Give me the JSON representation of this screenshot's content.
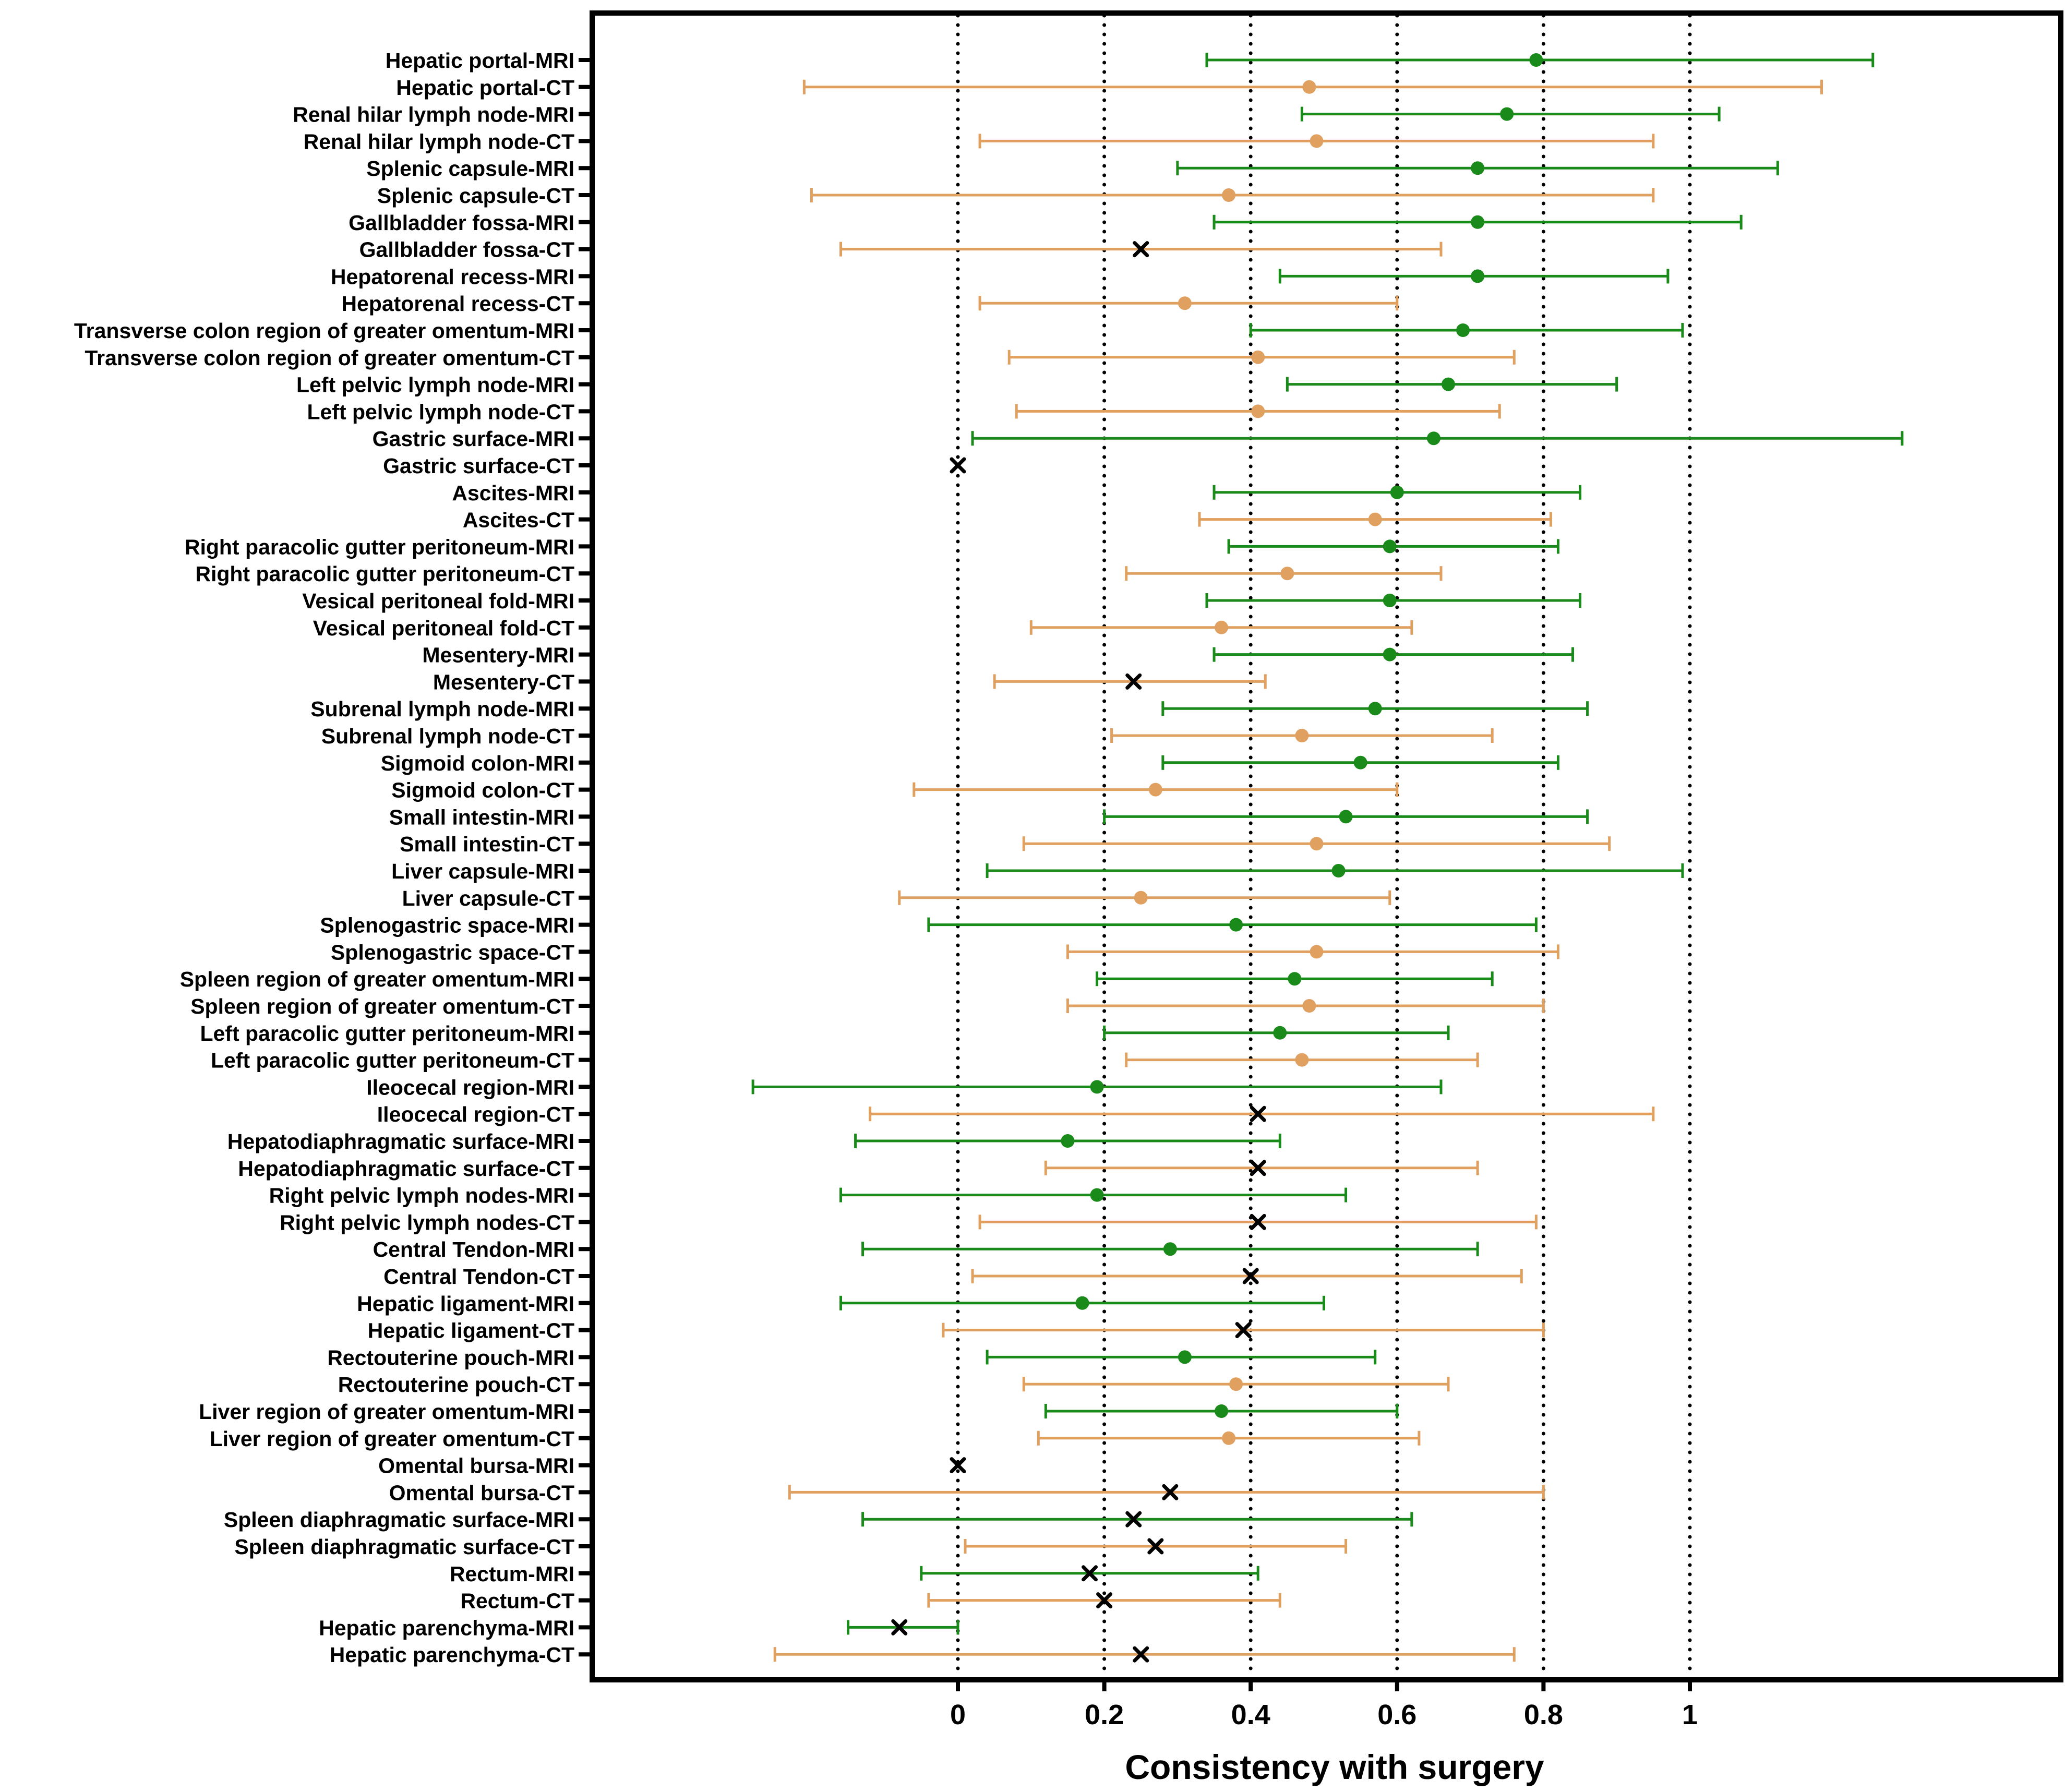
{
  "chart_data": {
    "type": "forest",
    "xlabel": "Consistency with surgery",
    "ylabel": "",
    "xlim": [
      -0.5,
      1.5
    ],
    "xticks": [
      "0",
      "0.2",
      "0.4",
      "0.6",
      "0.8",
      "1"
    ],
    "xtick_values": [
      0,
      0.2,
      0.4,
      0.6,
      0.8,
      1
    ],
    "reference_lines": [
      0,
      0.2,
      0.4,
      0.6,
      0.8,
      1
    ],
    "colors": {
      "MRI": "#1a8a1a",
      "CT": "#e0a060",
      "x_marker": "#000000",
      "axis": "#000000"
    },
    "rows": [
      {
        "label": "Hepatic portal-MRI",
        "modality": "MRI",
        "marker": "dot",
        "estimate": 0.79,
        "lower": 0.34,
        "upper": 1.25
      },
      {
        "label": "Hepatic portal-CT",
        "modality": "CT",
        "marker": "dot",
        "estimate": 0.48,
        "lower": -0.21,
        "upper": 1.18
      },
      {
        "label": "Renal hilar lymph node-MRI",
        "modality": "MRI",
        "marker": "dot",
        "estimate": 0.75,
        "lower": 0.47,
        "upper": 1.04
      },
      {
        "label": "Renal hilar lymph node-CT",
        "modality": "CT",
        "marker": "dot",
        "estimate": 0.49,
        "lower": 0.03,
        "upper": 0.95
      },
      {
        "label": "Splenic capsule-MRI",
        "modality": "MRI",
        "marker": "dot",
        "estimate": 0.71,
        "lower": 0.3,
        "upper": 1.12
      },
      {
        "label": "Splenic capsule-CT",
        "modality": "CT",
        "marker": "dot",
        "estimate": 0.37,
        "lower": -0.2,
        "upper": 0.95
      },
      {
        "label": "Gallbladder fossa-MRI",
        "modality": "MRI",
        "marker": "dot",
        "estimate": 0.71,
        "lower": 0.35,
        "upper": 1.07
      },
      {
        "label": "Gallbladder fossa-CT",
        "modality": "CT",
        "marker": "x",
        "estimate": 0.25,
        "lower": -0.16,
        "upper": 0.66
      },
      {
        "label": "Hepatorenal recess-MRI",
        "modality": "MRI",
        "marker": "dot",
        "estimate": 0.71,
        "lower": 0.44,
        "upper": 0.97
      },
      {
        "label": "Hepatorenal recess-CT",
        "modality": "CT",
        "marker": "dot",
        "estimate": 0.31,
        "lower": 0.03,
        "upper": 0.6
      },
      {
        "label": "Transverse colon region of greater omentum-MRI",
        "modality": "MRI",
        "marker": "dot",
        "estimate": 0.69,
        "lower": 0.4,
        "upper": 0.99
      },
      {
        "label": "Transverse colon region of greater omentum-CT",
        "modality": "CT",
        "marker": "dot",
        "estimate": 0.41,
        "lower": 0.07,
        "upper": 0.76
      },
      {
        "label": "Left pelvic lymph node-MRI",
        "modality": "MRI",
        "marker": "dot",
        "estimate": 0.67,
        "lower": 0.45,
        "upper": 0.9
      },
      {
        "label": "Left pelvic lymph node-CT",
        "modality": "CT",
        "marker": "dot",
        "estimate": 0.41,
        "lower": 0.08,
        "upper": 0.74
      },
      {
        "label": "Gastric surface-MRI",
        "modality": "MRI",
        "marker": "dot",
        "estimate": 0.65,
        "lower": 0.02,
        "upper": 1.29
      },
      {
        "label": "Gastric surface-CT",
        "modality": "CT",
        "marker": "x",
        "estimate": 0.0
      },
      {
        "label": "Ascites-MRI",
        "modality": "MRI",
        "marker": "dot",
        "estimate": 0.6,
        "lower": 0.35,
        "upper": 0.85
      },
      {
        "label": "Ascites-CT",
        "modality": "CT",
        "marker": "dot",
        "estimate": 0.57,
        "lower": 0.33,
        "upper": 0.81
      },
      {
        "label": "Right paracolic gutter peritoneum-MRI",
        "modality": "MRI",
        "marker": "dot",
        "estimate": 0.59,
        "lower": 0.37,
        "upper": 0.82
      },
      {
        "label": "Right paracolic gutter peritoneum-CT",
        "modality": "CT",
        "marker": "dot",
        "estimate": 0.45,
        "lower": 0.23,
        "upper": 0.66
      },
      {
        "label": "Vesical peritoneal fold-MRI",
        "modality": "MRI",
        "marker": "dot",
        "estimate": 0.59,
        "lower": 0.34,
        "upper": 0.85
      },
      {
        "label": "Vesical peritoneal fold-CT",
        "modality": "CT",
        "marker": "dot",
        "estimate": 0.36,
        "lower": 0.1,
        "upper": 0.62
      },
      {
        "label": "Mesentery-MRI",
        "modality": "MRI",
        "marker": "dot",
        "estimate": 0.59,
        "lower": 0.35,
        "upper": 0.84
      },
      {
        "label": "Mesentery-CT",
        "modality": "CT",
        "marker": "x",
        "estimate": 0.24,
        "lower": 0.05,
        "upper": 0.42
      },
      {
        "label": "Subrenal lymph node-MRI",
        "modality": "MRI",
        "marker": "dot",
        "estimate": 0.57,
        "lower": 0.28,
        "upper": 0.86
      },
      {
        "label": "Subrenal lymph node-CT",
        "modality": "CT",
        "marker": "dot",
        "estimate": 0.47,
        "lower": 0.21,
        "upper": 0.73
      },
      {
        "label": "Sigmoid colon-MRI",
        "modality": "MRI",
        "marker": "dot",
        "estimate": 0.55,
        "lower": 0.28,
        "upper": 0.82
      },
      {
        "label": "Sigmoid colon-CT",
        "modality": "CT",
        "marker": "dot",
        "estimate": 0.27,
        "lower": -0.06,
        "upper": 0.6
      },
      {
        "label": "Small intestin-MRI",
        "modality": "MRI",
        "marker": "dot",
        "estimate": 0.53,
        "lower": 0.2,
        "upper": 0.86
      },
      {
        "label": "Small intestin-CT",
        "modality": "CT",
        "marker": "dot",
        "estimate": 0.49,
        "lower": 0.09,
        "upper": 0.89
      },
      {
        "label": "Liver capsule-MRI",
        "modality": "MRI",
        "marker": "dot",
        "estimate": 0.52,
        "lower": 0.04,
        "upper": 0.99
      },
      {
        "label": "Liver capsule-CT",
        "modality": "CT",
        "marker": "dot",
        "estimate": 0.25,
        "lower": -0.08,
        "upper": 0.59
      },
      {
        "label": "Splenogastric space-MRI",
        "modality": "MRI",
        "marker": "dot",
        "estimate": 0.38,
        "lower": -0.04,
        "upper": 0.79
      },
      {
        "label": "Splenogastric space-CT",
        "modality": "CT",
        "marker": "dot",
        "estimate": 0.49,
        "lower": 0.15,
        "upper": 0.82
      },
      {
        "label": "Spleen region of greater omentum-MRI",
        "modality": "MRI",
        "marker": "dot",
        "estimate": 0.46,
        "lower": 0.19,
        "upper": 0.73
      },
      {
        "label": "Spleen region of greater omentum-CT",
        "modality": "CT",
        "marker": "dot",
        "estimate": 0.48,
        "lower": 0.15,
        "upper": 0.8
      },
      {
        "label": "Left paracolic gutter peritoneum-MRI",
        "modality": "MRI",
        "marker": "dot",
        "estimate": 0.44,
        "lower": 0.2,
        "upper": 0.67
      },
      {
        "label": "Left paracolic gutter peritoneum-CT",
        "modality": "CT",
        "marker": "dot",
        "estimate": 0.47,
        "lower": 0.23,
        "upper": 0.71
      },
      {
        "label": "Ileocecal region-MRI",
        "modality": "MRI",
        "marker": "dot",
        "estimate": 0.19,
        "lower": -0.28,
        "upper": 0.66
      },
      {
        "label": "Ileocecal region-CT",
        "modality": "CT",
        "marker": "x",
        "estimate": 0.41,
        "lower": -0.12,
        "upper": 0.95
      },
      {
        "label": "Hepatodiaphragmatic surface-MRI",
        "modality": "MRI",
        "marker": "dot",
        "estimate": 0.15,
        "lower": -0.14,
        "upper": 0.44
      },
      {
        "label": "Hepatodiaphragmatic surface-CT",
        "modality": "CT",
        "marker": "x",
        "estimate": 0.41,
        "lower": 0.12,
        "upper": 0.71
      },
      {
        "label": "Right pelvic lymph nodes-MRI",
        "modality": "MRI",
        "marker": "dot",
        "estimate": 0.19,
        "lower": -0.16,
        "upper": 0.53
      },
      {
        "label": "Right pelvic lymph nodes-CT",
        "modality": "CT",
        "marker": "x",
        "estimate": 0.41,
        "lower": 0.03,
        "upper": 0.79
      },
      {
        "label": "Central Tendon-MRI",
        "modality": "MRI",
        "marker": "dot",
        "estimate": 0.29,
        "lower": -0.13,
        "upper": 0.71
      },
      {
        "label": "Central Tendon-CT",
        "modality": "CT",
        "marker": "x",
        "estimate": 0.4,
        "lower": 0.02,
        "upper": 0.77
      },
      {
        "label": "Hepatic ligament-MRI",
        "modality": "MRI",
        "marker": "dot",
        "estimate": 0.17,
        "lower": -0.16,
        "upper": 0.5
      },
      {
        "label": "Hepatic ligament-CT",
        "modality": "CT",
        "marker": "x",
        "estimate": 0.39,
        "lower": -0.02,
        "upper": 0.8
      },
      {
        "label": "Rectouterine pouch-MRI",
        "modality": "MRI",
        "marker": "dot",
        "estimate": 0.31,
        "lower": 0.04,
        "upper": 0.57
      },
      {
        "label": "Rectouterine pouch-CT",
        "modality": "CT",
        "marker": "dot",
        "estimate": 0.38,
        "lower": 0.09,
        "upper": 0.67
      },
      {
        "label": "Liver region of greater omentum-MRI",
        "modality": "MRI",
        "marker": "dot",
        "estimate": 0.36,
        "lower": 0.12,
        "upper": 0.6
      },
      {
        "label": "Liver region of greater omentum-CT",
        "modality": "CT",
        "marker": "dot",
        "estimate": 0.37,
        "lower": 0.11,
        "upper": 0.63
      },
      {
        "label": "Omental bursa-MRI",
        "modality": "MRI",
        "marker": "x",
        "estimate": 0.0
      },
      {
        "label": "Omental bursa-CT",
        "modality": "CT",
        "marker": "x",
        "estimate": 0.29,
        "lower": -0.23,
        "upper": 0.8
      },
      {
        "label": "Spleen diaphragmatic surface-MRI",
        "modality": "MRI",
        "marker": "x",
        "estimate": 0.24,
        "lower": -0.13,
        "upper": 0.62
      },
      {
        "label": "Spleen diaphragmatic surface-CT",
        "modality": "CT",
        "marker": "x",
        "estimate": 0.27,
        "lower": 0.01,
        "upper": 0.53
      },
      {
        "label": "Rectum-MRI",
        "modality": "MRI",
        "marker": "x",
        "estimate": 0.18,
        "lower": -0.05,
        "upper": 0.41
      },
      {
        "label": "Rectum-CT",
        "modality": "CT",
        "marker": "x",
        "estimate": 0.2,
        "lower": -0.04,
        "upper": 0.44
      },
      {
        "label": "Hepatic parenchyma-MRI",
        "modality": "MRI",
        "marker": "x",
        "estimate": -0.08,
        "lower": -0.15,
        "upper": 0.0
      },
      {
        "label": "Hepatic parenchyma-CT",
        "modality": "CT",
        "marker": "x",
        "estimate": 0.25,
        "lower": -0.25,
        "upper": 0.76
      }
    ]
  }
}
